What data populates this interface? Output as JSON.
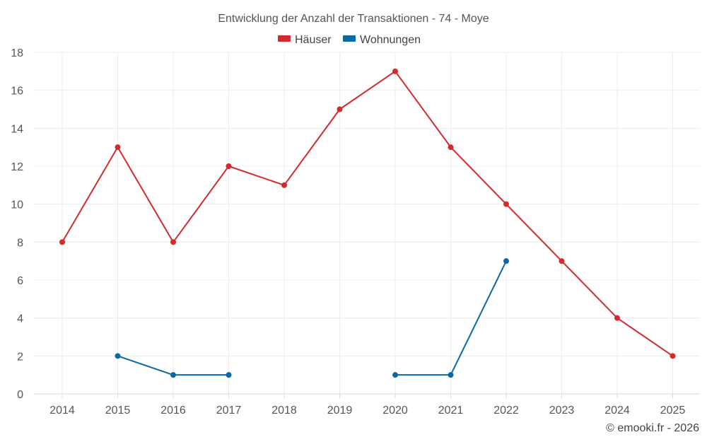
{
  "chart_data": {
    "type": "line",
    "title": "Entwicklung der Anzahl der Transaktionen - 74 - Moye",
    "categories": [
      "2014",
      "2015",
      "2016",
      "2017",
      "2018",
      "2019",
      "2020",
      "2021",
      "2022",
      "2023",
      "2024",
      "2025"
    ],
    "series": [
      {
        "name": "Häuser",
        "color": "#d42a2e",
        "values": [
          8,
          13,
          8,
          12,
          11,
          15,
          17,
          13,
          10,
          7,
          4,
          2
        ]
      },
      {
        "name": "Wohnungen",
        "color": "#0a69a3",
        "values": [
          null,
          2,
          1,
          1,
          null,
          null,
          1,
          1,
          7,
          null,
          null,
          null
        ]
      }
    ],
    "ylim": [
      0,
      18
    ],
    "yticks": [
      0,
      2,
      4,
      6,
      8,
      10,
      12,
      14,
      16,
      18
    ],
    "xlabel": "",
    "ylabel": "",
    "grid": true,
    "legend": "top-center"
  },
  "credit": "© emooki.fr - 2026"
}
